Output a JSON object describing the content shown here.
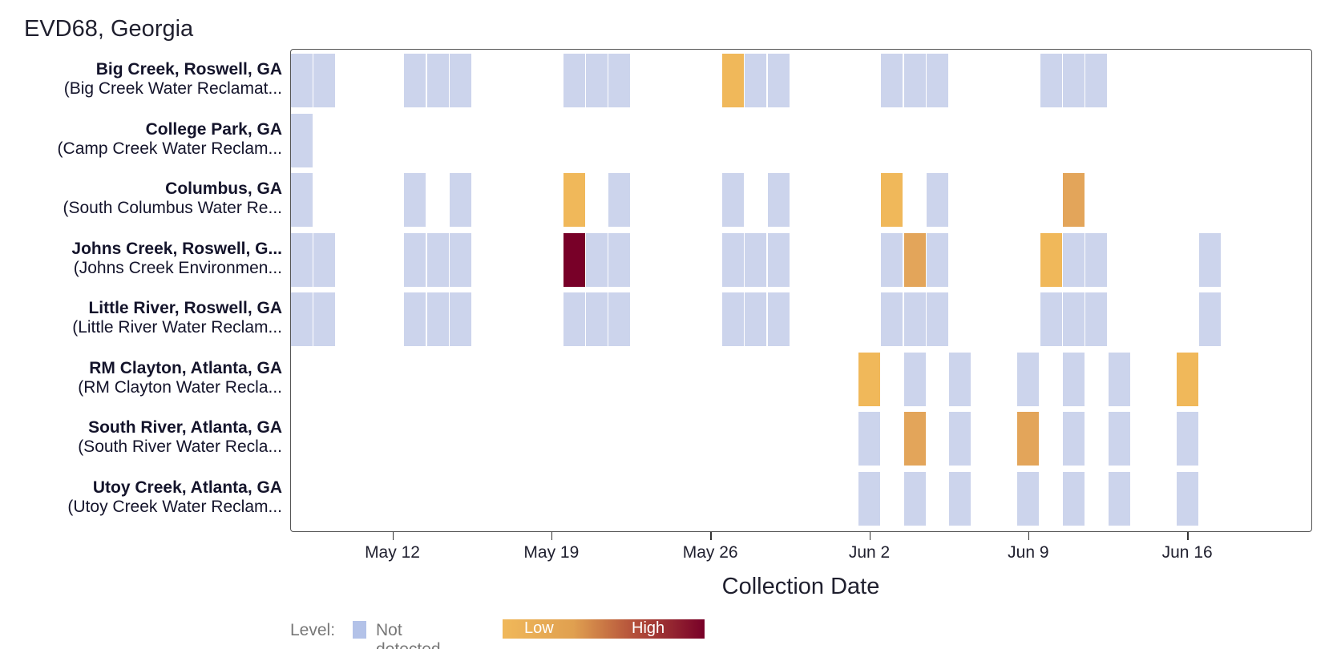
{
  "chart_data": {
    "type": "heatmap",
    "title": "EVD68, Georgia",
    "xlabel": "Collection Date",
    "x_ticks": [
      "May 12",
      "May 19",
      "May 26",
      "Jun 2",
      "Jun 9",
      "Jun 16"
    ],
    "x_tick_days": [
      8,
      15,
      22,
      29,
      36,
      43
    ],
    "x_range_days": [
      3.5,
      48.5
    ],
    "day_note": "day index: day 1 = May 5",
    "rows": [
      {
        "name": "Big Creek, Roswell, GA",
        "facility": "(Big Creek Water Reclamat..."
      },
      {
        "name": "College Park, GA",
        "facility": "(Camp Creek Water Reclam..."
      },
      {
        "name": "Columbus, GA",
        "facility": "(South Columbus Water Re..."
      },
      {
        "name": "Johns Creek, Roswell, G...",
        "facility": "(Johns Creek Environmen..."
      },
      {
        "name": "Little River, Roswell, GA",
        "facility": "(Little River Water Reclam..."
      },
      {
        "name": "RM Clayton, Atlanta, GA",
        "facility": "(RM Clayton Water Recla..."
      },
      {
        "name": "South River, Atlanta, GA",
        "facility": "(South River Water Recla..."
      },
      {
        "name": "Utoy Creek, Atlanta, GA",
        "facility": "(Utoy Creek Water Reclam..."
      }
    ],
    "samples": [
      {
        "row": 0,
        "days": [
          4,
          5,
          9,
          10,
          11,
          16,
          17,
          18,
          23,
          24,
          25,
          30,
          31,
          32,
          37,
          38,
          39
        ],
        "levels": [
          0,
          0,
          0,
          0,
          0,
          0,
          0,
          0,
          0.05,
          0,
          0,
          0,
          0,
          0,
          0,
          0,
          0
        ]
      },
      {
        "row": 1,
        "days": [
          4
        ],
        "levels": [
          0
        ]
      },
      {
        "row": 2,
        "days": [
          4,
          9,
          11,
          16,
          18,
          23,
          25,
          30,
          32,
          38
        ],
        "levels": [
          0,
          0,
          0,
          0.05,
          0,
          0,
          0,
          0.05,
          0,
          0.2
        ]
      },
      {
        "row": 3,
        "days": [
          4,
          5,
          9,
          10,
          11,
          16,
          17,
          18,
          23,
          24,
          25,
          30,
          31,
          32,
          37,
          38,
          39,
          44
        ],
        "levels": [
          0,
          0,
          0,
          0,
          0,
          1.0,
          0,
          0,
          0,
          0,
          0,
          0,
          0.2,
          0,
          0.05,
          0,
          0,
          0
        ]
      },
      {
        "row": 4,
        "days": [
          4,
          5,
          9,
          10,
          11,
          16,
          17,
          18,
          23,
          24,
          25,
          30,
          31,
          32,
          37,
          38,
          39,
          44
        ],
        "levels": [
          0,
          0,
          0,
          0,
          0,
          0,
          0,
          0,
          0,
          0,
          0,
          0,
          0,
          0,
          0,
          0,
          0,
          0
        ]
      },
      {
        "row": 5,
        "days": [
          29,
          31,
          33,
          36,
          38,
          40,
          43
        ],
        "levels": [
          0.05,
          0,
          0,
          0,
          0,
          0,
          0.05
        ]
      },
      {
        "row": 6,
        "days": [
          29,
          31,
          33,
          36,
          38,
          40,
          43
        ],
        "levels": [
          0,
          0.2,
          0,
          0.1,
          0,
          0,
          0
        ]
      },
      {
        "row": 7,
        "days": [
          29,
          31,
          33,
          36,
          38,
          40,
          43
        ],
        "levels": [
          0,
          0,
          0,
          0,
          0,
          0,
          0
        ]
      }
    ],
    "level_scale": {
      "not_detected": 0,
      "low": 0.05,
      "high": 1.0
    }
  },
  "legend": {
    "level_label": "Level:",
    "not_detected_label": "Not detected",
    "low_label": "Low",
    "high_label": "High"
  },
  "colors": {
    "not_detected": "#ccd4ec",
    "low": "#f0b85a",
    "mid": "#e3a55a",
    "high": "#780028"
  }
}
